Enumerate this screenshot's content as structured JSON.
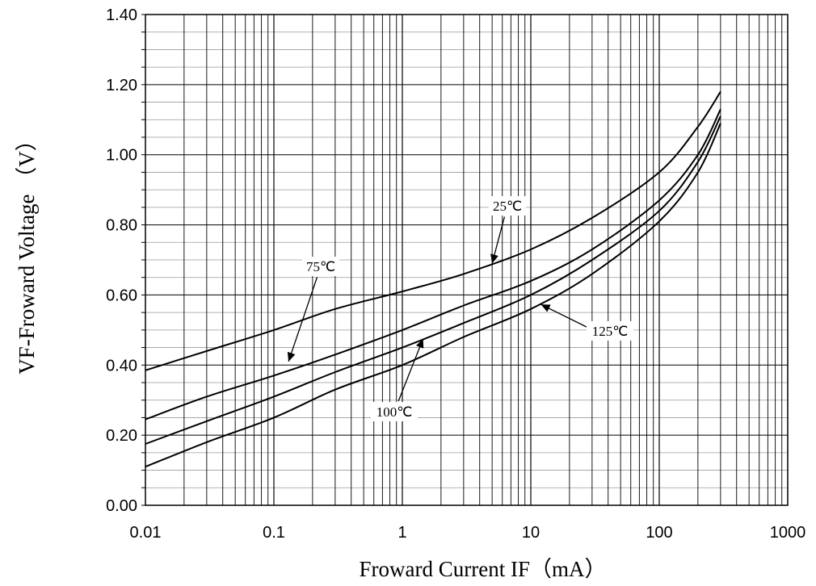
{
  "chart_data": {
    "type": "line",
    "x_scale": "log",
    "xlabel": "Froward Current IF（mA）",
    "ylabel": "VF-Froward Voltage （V）",
    "xlim": [
      0.01,
      1000
    ],
    "ylim": [
      0.0,
      1.4
    ],
    "x_ticks": [
      "0.01",
      "0.1",
      "1",
      "10",
      "100",
      "1000"
    ],
    "y_ticks": [
      "0.00",
      "0.20",
      "0.40",
      "0.60",
      "0.80",
      "1.00",
      "1.20",
      "1.40"
    ],
    "grid": true,
    "series": [
      {
        "name": "25℃",
        "x": [
          0.01,
          0.03,
          0.1,
          0.3,
          1,
          3,
          10,
          30,
          100,
          200,
          300
        ],
        "y": [
          0.385,
          0.44,
          0.5,
          0.56,
          0.61,
          0.66,
          0.73,
          0.82,
          0.95,
          1.08,
          1.18
        ]
      },
      {
        "name": "75℃",
        "x": [
          0.01,
          0.03,
          0.1,
          0.3,
          1,
          3,
          10,
          30,
          100,
          200,
          300
        ],
        "y": [
          0.245,
          0.31,
          0.37,
          0.43,
          0.5,
          0.57,
          0.64,
          0.73,
          0.87,
          1.0,
          1.13
        ]
      },
      {
        "name": "100℃",
        "x": [
          0.01,
          0.03,
          0.1,
          0.3,
          1,
          3,
          10,
          30,
          100,
          200,
          300
        ],
        "y": [
          0.175,
          0.24,
          0.31,
          0.38,
          0.45,
          0.52,
          0.6,
          0.7,
          0.84,
          0.98,
          1.11
        ]
      },
      {
        "name": "125℃",
        "x": [
          0.01,
          0.03,
          0.1,
          0.3,
          1,
          3,
          10,
          30,
          100,
          200,
          300
        ],
        "y": [
          0.11,
          0.18,
          0.25,
          0.33,
          0.4,
          0.48,
          0.56,
          0.66,
          0.81,
          0.95,
          1.09
        ]
      }
    ],
    "annotations": [
      {
        "text": "25℃",
        "series": "25℃",
        "x": 5,
        "y": 0.69
      },
      {
        "text": "75℃",
        "series": "75℃",
        "x": 0.13,
        "y": 0.41
      },
      {
        "text": "100℃",
        "series": "100℃",
        "x": 1.45,
        "y": 0.475
      },
      {
        "text": "125℃",
        "series": "125℃",
        "x": 12,
        "y": 0.573
      }
    ]
  }
}
